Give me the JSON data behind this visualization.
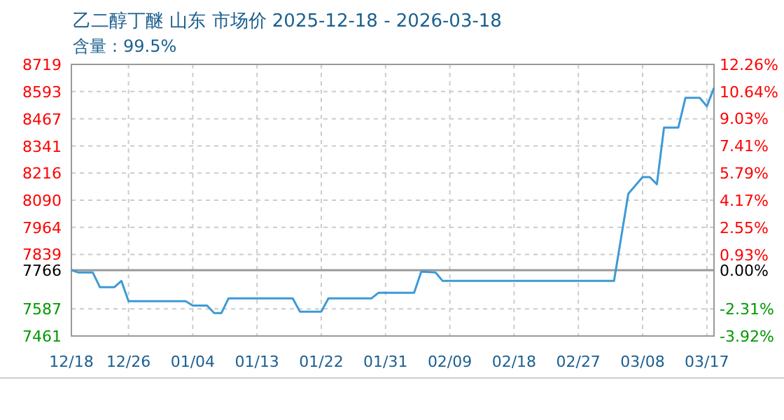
{
  "chart_data": {
    "type": "line",
    "title": "乙二醇丁醚 山东 市场价 2025-12-18 - 2026-03-18",
    "subtitle": "含量：99.5%",
    "x": [
      "2025-12-18",
      "2025-12-19",
      "2025-12-21",
      "2025-12-22",
      "2025-12-24",
      "2025-12-25",
      "2025-12-26",
      "2026-01-03",
      "2026-01-04",
      "2026-01-06",
      "2026-01-07",
      "2026-01-08",
      "2026-01-09",
      "2026-01-18",
      "2026-01-19",
      "2026-01-22",
      "2026-01-23",
      "2026-01-29",
      "2026-01-30",
      "2026-02-04",
      "2026-02-05",
      "2026-02-07",
      "2026-02-08",
      "2026-03-04",
      "2026-03-06",
      "2026-03-08",
      "2026-03-09",
      "2026-03-10",
      "2026-03-11",
      "2026-03-13",
      "2026-03-14",
      "2026-03-16",
      "2026-03-17",
      "2026-03-18"
    ],
    "series": [
      {
        "color": "#3d9ad6",
        "values": [
          7766,
          7755,
          7755,
          7687,
          7687,
          7716,
          7622,
          7622,
          7602,
          7602,
          7567,
          7567,
          7635,
          7635,
          7574,
          7574,
          7635,
          7635,
          7661,
          7661,
          7759,
          7755,
          7716,
          7716,
          8120,
          8197,
          8197,
          8164,
          8426,
          8426,
          8564,
          8564,
          8525,
          8610
        ]
      }
    ],
    "xlim": [
      "2025-12-18",
      "2026-03-18"
    ],
    "xticks": [
      {
        "value": "2025-12-18",
        "label": "12/18"
      },
      {
        "value": "2025-12-26",
        "label": "12/26"
      },
      {
        "value": "2026-01-04",
        "label": "01/04"
      },
      {
        "value": "2026-01-13",
        "label": "01/13"
      },
      {
        "value": "2026-01-22",
        "label": "01/22"
      },
      {
        "value": "2026-01-31",
        "label": "01/31"
      },
      {
        "value": "2026-02-09",
        "label": "02/09"
      },
      {
        "value": "2026-02-18",
        "label": "02/18"
      },
      {
        "value": "2026-02-27",
        "label": "02/27"
      },
      {
        "value": "2026-03-08",
        "label": "03/08"
      },
      {
        "value": "2026-03-17",
        "label": "03/17"
      }
    ],
    "ylim": [
      7461,
      8719
    ],
    "yticks": [
      7461,
      7587,
      7766,
      7839,
      7964,
      8090,
      8216,
      8341,
      8467,
      8593,
      8719
    ],
    "y2lim": [
      -3.92,
      12.26
    ],
    "y2ticks": [
      {
        "value": -3.92,
        "label": "-3.92%"
      },
      {
        "value": -2.31,
        "label": "-2.31%"
      },
      {
        "value": 0,
        "label": "0.00%"
      },
      {
        "value": 0.93,
        "label": "0.93%"
      },
      {
        "value": 2.55,
        "label": "2.55%"
      },
      {
        "value": 4.17,
        "label": "4.17%"
      },
      {
        "value": 5.79,
        "label": "5.79%"
      },
      {
        "value": 7.41,
        "label": "7.41%"
      },
      {
        "value": 9.03,
        "label": "9.03%"
      },
      {
        "value": 10.64,
        "label": "10.64%"
      },
      {
        "value": 12.26,
        "label": "12.26%"
      }
    ],
    "ref_lines": [
      {
        "axis": "y",
        "value": 7766,
        "color": "#999999",
        "line_style": "solid"
      }
    ],
    "grid": true,
    "marker": "none",
    "line_style": "solid"
  }
}
